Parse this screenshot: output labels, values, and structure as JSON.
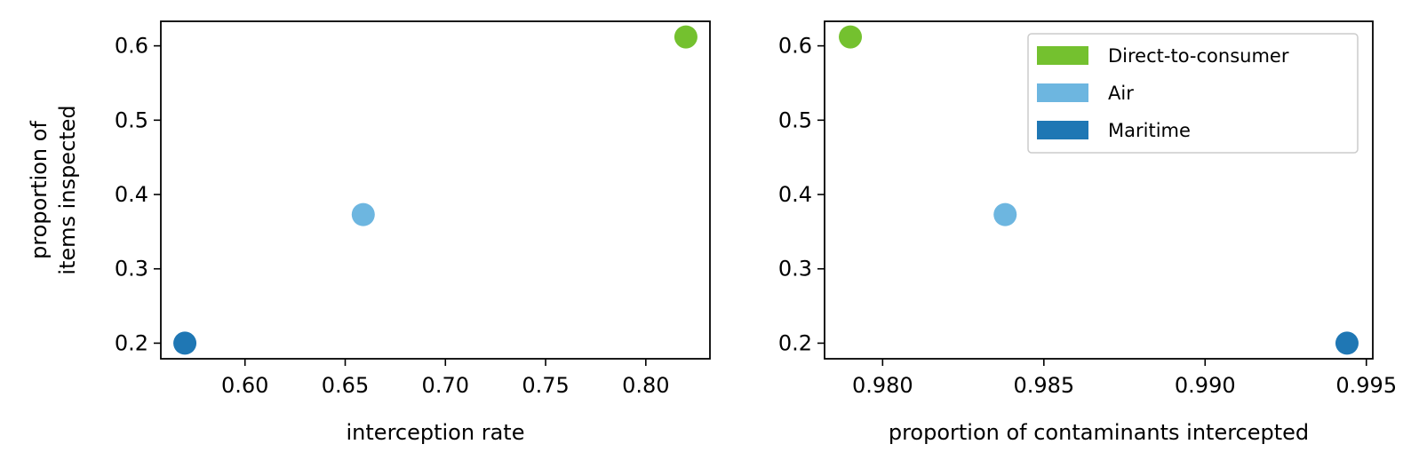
{
  "chart_data": [
    {
      "type": "scatter",
      "xlabel": "interception rate",
      "ylabel": [
        "proportion of",
        "items inspected"
      ],
      "xlim": [
        0.558,
        0.832
      ],
      "ylim": [
        0.179,
        0.633
      ],
      "xticks": [
        0.6,
        0.65,
        0.7,
        0.75,
        0.8
      ],
      "xtick_labels": [
        "0.60",
        "0.65",
        "0.70",
        "0.75",
        "0.80"
      ],
      "yticks": [
        0.2,
        0.3,
        0.4,
        0.5,
        0.6
      ],
      "ytick_labels": [
        "0.2",
        "0.3",
        "0.4",
        "0.5",
        "0.6"
      ],
      "series": [
        {
          "name": "Direct-to-consumer",
          "color": "#74c12f",
          "points": [
            [
              0.82,
              0.612
            ]
          ]
        },
        {
          "name": "Air",
          "color": "#6db6e0",
          "points": [
            [
              0.659,
              0.373
            ]
          ]
        },
        {
          "name": "Maritime",
          "color": "#1f77b4",
          "points": [
            [
              0.57,
              0.2
            ]
          ]
        }
      ],
      "legend": null
    },
    {
      "type": "scatter",
      "xlabel": "proportion of contaminants intercepted",
      "ylabel": null,
      "xlim": [
        0.9782,
        0.9952
      ],
      "ylim": [
        0.179,
        0.633
      ],
      "xticks": [
        0.98,
        0.985,
        0.99,
        0.995
      ],
      "xtick_labels": [
        "0.980",
        "0.985",
        "0.990",
        "0.995"
      ],
      "yticks": [
        0.2,
        0.3,
        0.4,
        0.5,
        0.6
      ],
      "ytick_labels": [
        "0.2",
        "0.3",
        "0.4",
        "0.5",
        "0.6"
      ],
      "series": [
        {
          "name": "Direct-to-consumer",
          "color": "#74c12f",
          "points": [
            [
              0.979,
              0.612
            ]
          ]
        },
        {
          "name": "Air",
          "color": "#6db6e0",
          "points": [
            [
              0.9838,
              0.373
            ]
          ]
        },
        {
          "name": "Maritime",
          "color": "#1f77b4",
          "points": [
            [
              0.9944,
              0.2
            ]
          ]
        }
      ],
      "legend": "top-right"
    }
  ]
}
